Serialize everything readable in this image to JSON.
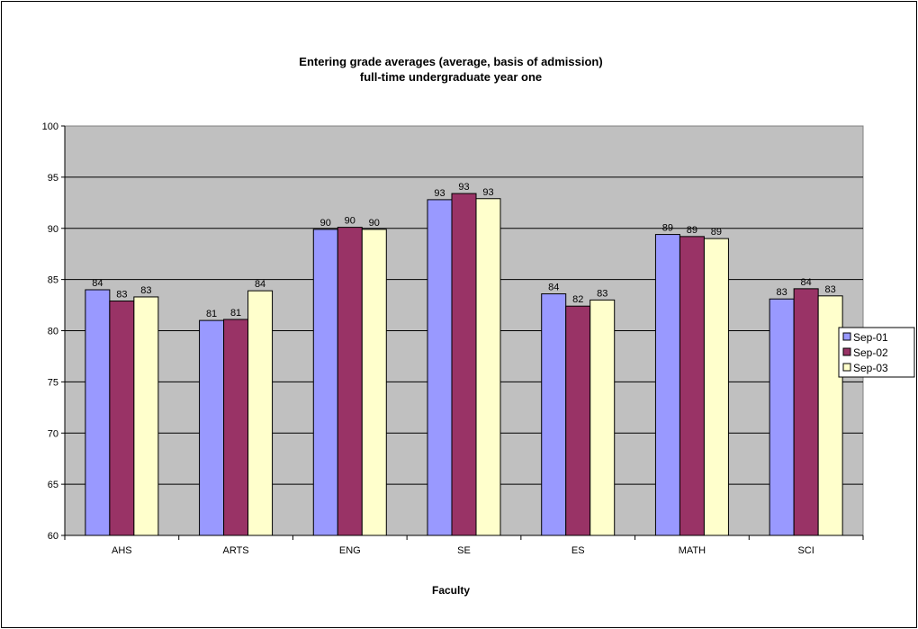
{
  "chart_data": {
    "type": "bar",
    "title_lines": [
      "Entering grade averages (average, basis of admission)",
      "full-time undergraduate year one"
    ],
    "xlabel": "Faculty",
    "ylabel": "",
    "categories": [
      "AHS",
      "ARTS",
      "ENG",
      "SE",
      "ES",
      "MATH",
      "SCI"
    ],
    "series": [
      {
        "name": "Sep-01",
        "color": "#9999ff",
        "values": [
          84.0,
          81.0,
          89.9,
          92.8,
          83.6,
          89.4,
          83.1
        ],
        "labels": [
          "84",
          "81",
          "90",
          "93",
          "84",
          "89",
          "83"
        ]
      },
      {
        "name": "Sep-02",
        "color": "#993366",
        "values": [
          82.9,
          81.1,
          90.1,
          93.4,
          82.4,
          89.2,
          84.1
        ],
        "labels": [
          "83",
          "81",
          "90",
          "93",
          "82",
          "89",
          "84"
        ]
      },
      {
        "name": "Sep-03",
        "color": "#ffffcc",
        "values": [
          83.3,
          83.9,
          89.9,
          92.9,
          83.0,
          89.0,
          83.4
        ],
        "labels": [
          "83",
          "84",
          "90",
          "93",
          "83",
          "89",
          "83"
        ]
      }
    ],
    "ylim": [
      60,
      100
    ],
    "yticks": [
      60,
      65,
      70,
      75,
      80,
      85,
      90,
      95,
      100
    ],
    "grid": true,
    "plot_background": "#c0c0c0",
    "legend_position": "right"
  }
}
